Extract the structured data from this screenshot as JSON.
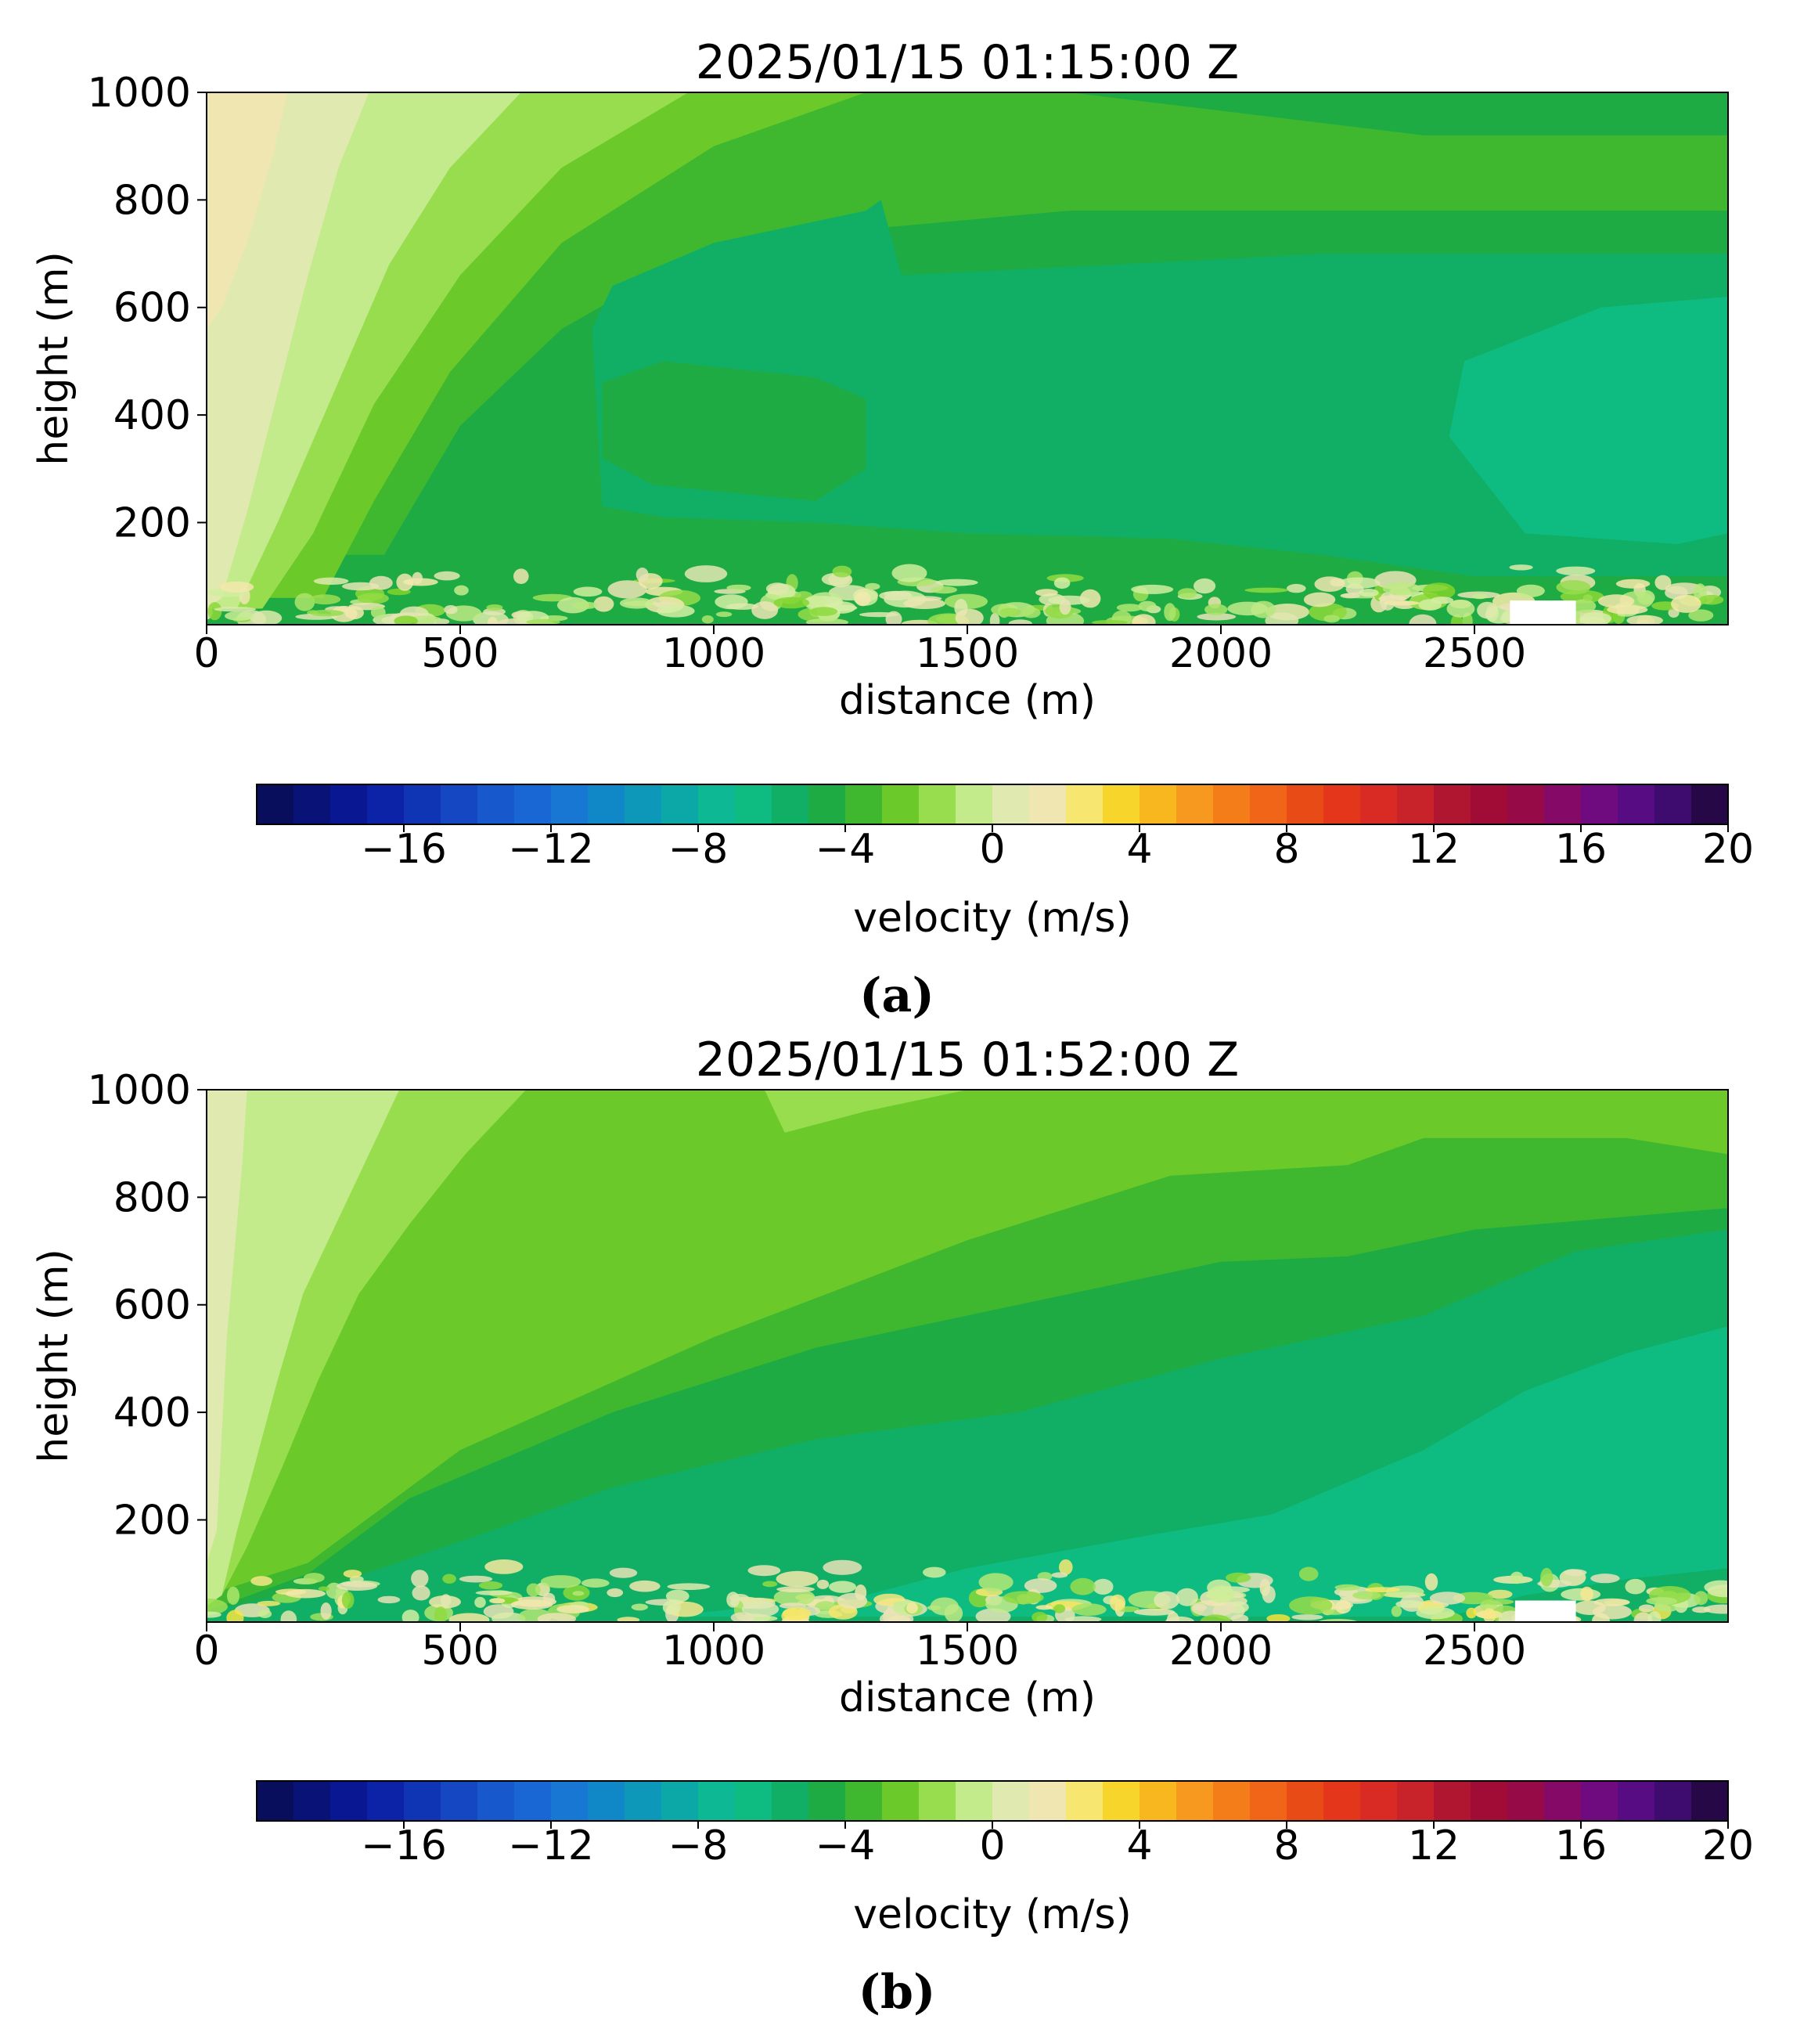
{
  "chart_data": [
    {
      "type": "heatmap",
      "subtype": "filled-contour",
      "panel_label": "(a)",
      "title": "2025/01/15 01:15:00 Z",
      "xlabel": "distance (m)",
      "ylabel": "height (m)",
      "xlim": [
        0,
        3000
      ],
      "ylim": [
        10,
        1000
      ],
      "xticks": [
        0,
        500,
        1000,
        1500,
        2000,
        2500
      ],
      "yticks": [
        200,
        400,
        600,
        800,
        1000
      ],
      "colorbar": {
        "label": "velocity (m/s)",
        "range": [
          -20,
          20
        ],
        "levels": 40,
        "ticks": [
          -16,
          -12,
          -8,
          -4,
          0,
          4,
          8,
          12,
          16,
          20
        ],
        "tick_labels": [
          "−16",
          "−12",
          "−8",
          "−4",
          "0",
          "4",
          "8",
          "12",
          "16",
          "20"
        ]
      },
      "regions": [
        {
          "label": "background",
          "velocity": -4.5
        },
        {
          "label": "upper-band",
          "velocity": -3.5,
          "poly": [
            [
              0,
              1000
            ],
            [
              1700,
              1000
            ],
            [
              2400,
              920
            ],
            [
              3000,
              920
            ],
            [
              3000,
              780
            ],
            [
              2400,
              780
            ],
            [
              1700,
              780
            ],
            [
              1000,
              720
            ],
            [
              700,
              560
            ],
            [
              500,
              380
            ],
            [
              350,
              140
            ],
            [
              0,
              140
            ]
          ]
        },
        {
          "label": "core",
          "velocity": -5.5,
          "poly": [
            [
              1000,
              720
            ],
            [
              1300,
              780
            ],
            [
              1330,
              800
            ],
            [
              1370,
              660
            ],
            [
              1800,
              680
            ],
            [
              2200,
              700
            ],
            [
              3000,
              700
            ],
            [
              3000,
              100
            ],
            [
              2500,
              100
            ],
            [
              2200,
              140
            ],
            [
              1900,
              170
            ],
            [
              1500,
              180
            ],
            [
              1200,
              200
            ],
            [
              900,
              210
            ],
            [
              780,
              230
            ],
            [
              760,
              560
            ],
            [
              800,
              640
            ]
          ]
        },
        {
          "label": "core-hole",
          "velocity": -4.5,
          "poly": [
            [
              1200,
              470
            ],
            [
              1300,
              430
            ],
            [
              1300,
              300
            ],
            [
              1200,
              240
            ],
            [
              880,
              270
            ],
            [
              780,
              320
            ],
            [
              780,
              460
            ],
            [
              900,
              500
            ]
          ]
        },
        {
          "label": "max-core",
          "velocity": -6.5,
          "poly": [
            [
              2750,
              600
            ],
            [
              3000,
              620
            ],
            [
              3000,
              180
            ],
            [
              2900,
              160
            ],
            [
              2600,
              180
            ],
            [
              2450,
              360
            ],
            [
              2480,
              500
            ]
          ]
        },
        {
          "label": "band-a",
          "velocity": -2.5,
          "poly": [
            [
              0,
              1000
            ],
            [
              1300,
              1000
            ],
            [
              1000,
              900
            ],
            [
              700,
              720
            ],
            [
              480,
              480
            ],
            [
              330,
              240
            ],
            [
              230,
              60
            ],
            [
              0,
              60
            ]
          ]
        },
        {
          "label": "band-b",
          "velocity": -1.5,
          "poly": [
            [
              0,
              1000
            ],
            [
              950,
              1000
            ],
            [
              700,
              860
            ],
            [
              500,
              660
            ],
            [
              330,
              420
            ],
            [
              210,
              180
            ],
            [
              110,
              40
            ],
            [
              0,
              40
            ]
          ]
        },
        {
          "label": "band-c",
          "velocity": -0.5,
          "poly": [
            [
              0,
              1000
            ],
            [
              620,
              1000
            ],
            [
              480,
              860
            ],
            [
              360,
              680
            ],
            [
              250,
              440
            ],
            [
              140,
              200
            ],
            [
              60,
              40
            ],
            [
              0,
              40
            ]
          ]
        },
        {
          "label": "band-d",
          "velocity": 0.5,
          "poly": [
            [
              0,
              1000
            ],
            [
              320,
              1000
            ],
            [
              260,
              860
            ],
            [
              200,
              660
            ],
            [
              140,
              440
            ],
            [
              80,
              220
            ],
            [
              30,
              60
            ],
            [
              0,
              40
            ]
          ]
        },
        {
          "label": "band-e",
          "velocity": 1.5,
          "poly": [
            [
              0,
              1000
            ],
            [
              160,
              1000
            ],
            [
              130,
              880
            ],
            [
              80,
              720
            ],
            [
              30,
              600
            ],
            [
              0,
              560
            ]
          ]
        }
      ],
      "near_ground": {
        "velocity_min": -2,
        "velocity_max": 2,
        "gap": {
          "x": [
            2570,
            2700
          ],
          "height": 55
        }
      }
    },
    {
      "type": "heatmap",
      "subtype": "filled-contour",
      "panel_label": "(b)",
      "title": "2025/01/15 01:52:00 Z",
      "xlabel": "distance (m)",
      "ylabel": "height (m)",
      "xlim": [
        0,
        3000
      ],
      "ylim": [
        10,
        1000
      ],
      "xticks": [
        0,
        500,
        1000,
        1500,
        2000,
        2500
      ],
      "yticks": [
        200,
        400,
        600,
        800,
        1000
      ],
      "colorbar": {
        "label": "velocity (m/s)",
        "range": [
          -20,
          20
        ],
        "levels": 40,
        "ticks": [
          -16,
          -12,
          -8,
          -4,
          0,
          4,
          8,
          12,
          16,
          20
        ],
        "tick_labels": [
          "−16",
          "−12",
          "−8",
          "−4",
          "0",
          "4",
          "8",
          "12",
          "16",
          "20"
        ]
      },
      "regions": [
        {
          "label": "background",
          "velocity": -2.5
        },
        {
          "label": "band-1",
          "velocity": -3.5,
          "poly": [
            [
              0,
              60
            ],
            [
              200,
              120
            ],
            [
              500,
              330
            ],
            [
              1000,
              540
            ],
            [
              1500,
              720
            ],
            [
              1900,
              840
            ],
            [
              2250,
              860
            ],
            [
              2400,
              910
            ],
            [
              2800,
              910
            ],
            [
              3000,
              880
            ],
            [
              3000,
              10
            ],
            [
              0,
              10
            ]
          ]
        },
        {
          "label": "band-2",
          "velocity": -4.5,
          "poly": [
            [
              0,
              30
            ],
            [
              200,
              100
            ],
            [
              400,
              240
            ],
            [
              800,
              400
            ],
            [
              1200,
              520
            ],
            [
              1600,
              600
            ],
            [
              2000,
              680
            ],
            [
              2250,
              690
            ],
            [
              2500,
              740
            ],
            [
              3000,
              780
            ],
            [
              3000,
              10
            ],
            [
              0,
              10
            ]
          ]
        },
        {
          "label": "band-3",
          "velocity": -5.5,
          "poly": [
            [
              0,
              30
            ],
            [
              250,
              80
            ],
            [
              500,
              160
            ],
            [
              800,
              260
            ],
            [
              1200,
              350
            ],
            [
              1600,
              400
            ],
            [
              2000,
              500
            ],
            [
              2400,
              580
            ],
            [
              2700,
              700
            ],
            [
              3000,
              740
            ],
            [
              3000,
              10
            ],
            [
              0,
              10
            ]
          ]
        },
        {
          "label": "band-4",
          "velocity": -6.5,
          "poly": [
            [
              900,
              20
            ],
            [
              1300,
              60
            ],
            [
              1500,
              110
            ],
            [
              1850,
              170
            ],
            [
              2100,
              210
            ],
            [
              2400,
              330
            ],
            [
              2600,
              440
            ],
            [
              2800,
              510
            ],
            [
              3000,
              560
            ],
            [
              3000,
              110
            ],
            [
              2800,
              90
            ],
            [
              2600,
              60
            ],
            [
              2450,
              20
            ]
          ]
        },
        {
          "label": "band-a",
          "velocity": -1.5,
          "poly": [
            [
              0,
              1000
            ],
            [
              630,
              1000
            ],
            [
              510,
              880
            ],
            [
              400,
              750
            ],
            [
              300,
              620
            ],
            [
              220,
              460
            ],
            [
              150,
              300
            ],
            [
              80,
              150
            ],
            [
              30,
              60
            ],
            [
              0,
              40
            ]
          ]
        },
        {
          "label": "band-b",
          "velocity": -0.5,
          "poly": [
            [
              0,
              1000
            ],
            [
              380,
              1000
            ],
            [
              320,
              880
            ],
            [
              260,
              760
            ],
            [
              190,
              620
            ],
            [
              140,
              460
            ],
            [
              100,
              320
            ],
            [
              60,
              180
            ],
            [
              30,
              60
            ],
            [
              0,
              40
            ]
          ]
        },
        {
          "label": "band-c",
          "velocity": 0.5,
          "poly": [
            [
              0,
              1000
            ],
            [
              80,
              1000
            ],
            [
              70,
              860
            ],
            [
              55,
              700
            ],
            [
              40,
              540
            ],
            [
              30,
              360
            ],
            [
              20,
              180
            ],
            [
              0,
              120
            ]
          ]
        },
        {
          "label": "island",
          "velocity": -1.5,
          "poly": [
            [
              1100,
              1000
            ],
            [
              1500,
              1000
            ],
            [
              1300,
              960
            ],
            [
              1140,
              920
            ]
          ]
        }
      ],
      "near_ground": {
        "velocity_min": -2,
        "velocity_max": 3,
        "gap": {
          "x": [
            2580,
            2700
          ],
          "height": 50
        }
      }
    }
  ],
  "panel_labels": {
    "a": "(a)",
    "b": "(b)"
  }
}
